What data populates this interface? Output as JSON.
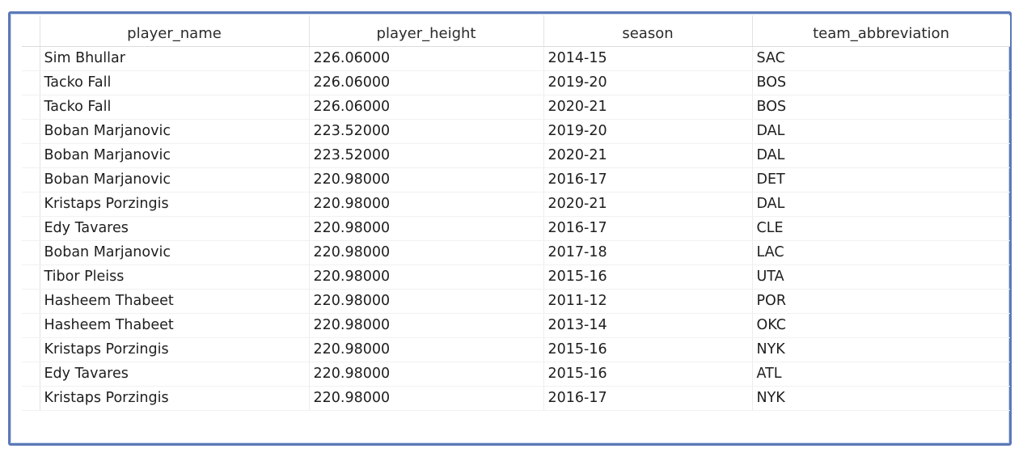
{
  "table": {
    "columns": [
      "player_name",
      "player_height",
      "season",
      "team_abbreviation"
    ],
    "rows": [
      [
        "Sim Bhullar",
        "226.06000",
        "2014-15",
        "SAC"
      ],
      [
        "Tacko Fall",
        "226.06000",
        "2019-20",
        "BOS"
      ],
      [
        "Tacko Fall",
        "226.06000",
        "2020-21",
        "BOS"
      ],
      [
        "Boban Marjanovic",
        "223.52000",
        "2019-20",
        "DAL"
      ],
      [
        "Boban Marjanovic",
        "223.52000",
        "2020-21",
        "DAL"
      ],
      [
        "Boban Marjanovic",
        "220.98000",
        "2016-17",
        "DET"
      ],
      [
        "Kristaps Porzingis",
        "220.98000",
        "2020-21",
        "DAL"
      ],
      [
        "Edy Tavares",
        "220.98000",
        "2016-17",
        "CLE"
      ],
      [
        "Boban Marjanovic",
        "220.98000",
        "2017-18",
        "LAC"
      ],
      [
        "Tibor Pleiss",
        "220.98000",
        "2015-16",
        "UTA"
      ],
      [
        "Hasheem Thabeet",
        "220.98000",
        "2011-12",
        "POR"
      ],
      [
        "Hasheem Thabeet",
        "220.98000",
        "2013-14",
        "OKC"
      ],
      [
        "Kristaps Porzingis",
        "220.98000",
        "2015-16",
        "NYK"
      ],
      [
        "Edy Tavares",
        "220.98000",
        "2015-16",
        "ATL"
      ],
      [
        "Kristaps Porzingis",
        "220.98000",
        "2016-17",
        "NYK"
      ]
    ]
  }
}
